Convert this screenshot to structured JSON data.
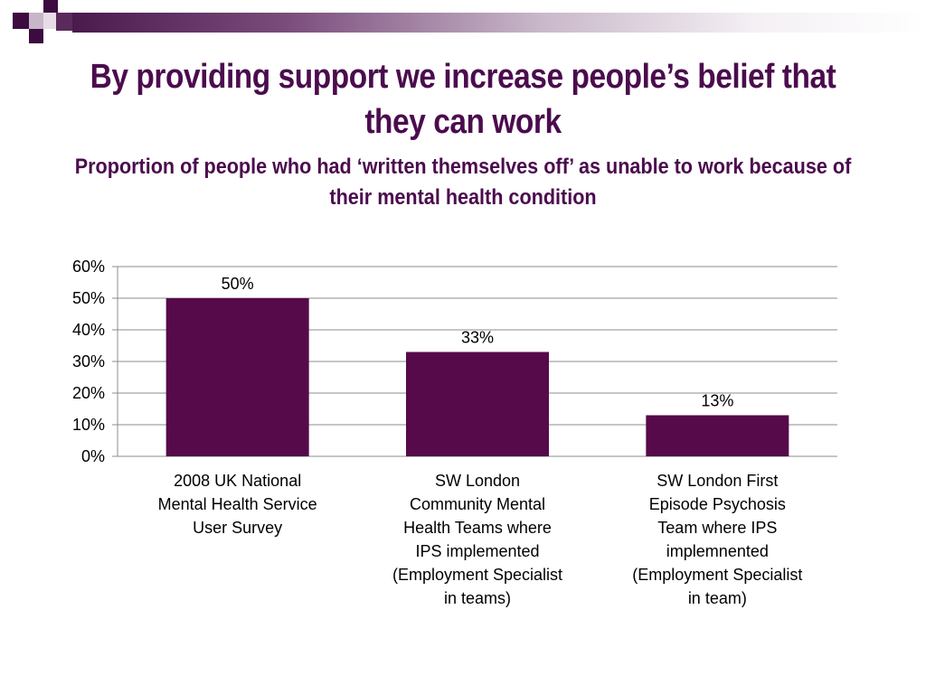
{
  "slide": {
    "title": "By providing support we increase people’s belief that they can work",
    "subtitle": "Proportion of people who had ‘written themselves off’ as unable to work because of their mental health condition"
  },
  "colors": {
    "title": "#4b0c4e",
    "bar": "#560a4a",
    "grid": "#8c8c8c"
  },
  "chart_data": {
    "type": "bar",
    "categories": [
      "2008 UK National Mental Health Service User Survey",
      "SW London Community Mental Health Teams where IPS implemented (Employment Specialist in teams)",
      "SW London First Episode Psychosis Team where IPS implemnented (Employment Specialist in team)"
    ],
    "values": [
      50,
      33,
      13
    ],
    "data_labels": [
      "50%",
      "33%",
      "13%"
    ],
    "yticks": [
      "0%",
      "10%",
      "20%",
      "30%",
      "40%",
      "50%",
      "60%"
    ],
    "ylim": [
      0,
      60
    ],
    "grid": true,
    "legend": "none"
  }
}
